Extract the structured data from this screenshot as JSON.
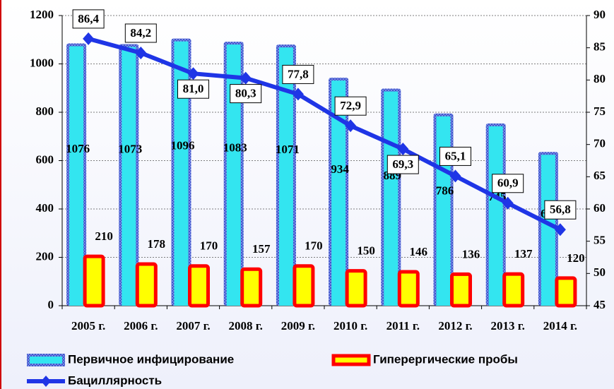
{
  "chart_data": {
    "type": "bar-line",
    "categories": [
      "2005 г.",
      "2006 г.",
      "2007 г.",
      "2008 г.",
      "2009 г.",
      "2010 г.",
      "2011 г.",
      "2012 г.",
      "2013 г.",
      "2014 г."
    ],
    "series": [
      {
        "name": "Первичное инфицирование",
        "type": "bar",
        "color": "#33e5f0",
        "border": "#4a5fd0",
        "values": [
          1076,
          1073,
          1096,
          1083,
          1071,
          934,
          889,
          786,
          745,
          627
        ]
      },
      {
        "name": "Гиперергические пробы",
        "type": "bar",
        "color": "#ffff00",
        "border": "#ff0000",
        "values": [
          210,
          178,
          170,
          157,
          170,
          150,
          146,
          136,
          137,
          120
        ]
      },
      {
        "name": "Бациллярность",
        "type": "line",
        "axis": "y2",
        "color": "#1f35e6",
        "values": [
          86.4,
          84.2,
          81.0,
          80.3,
          77.8,
          72.9,
          69.3,
          65.1,
          60.9,
          56.8
        ],
        "value_labels": [
          "86,4",
          "84,2",
          "81,0",
          "80,3",
          "77,8",
          "72,9",
          "69,3",
          "65,1",
          "60,9",
          "56,8"
        ]
      }
    ],
    "ylim": [
      0,
      1200
    ],
    "yticks": [
      0,
      200,
      400,
      600,
      800,
      1000,
      1200
    ],
    "y2lim": [
      45,
      90
    ],
    "y2ticks": [
      45,
      50,
      55,
      60,
      65,
      70,
      75,
      80,
      85,
      90
    ],
    "grid": true,
    "legend": "bottom"
  }
}
